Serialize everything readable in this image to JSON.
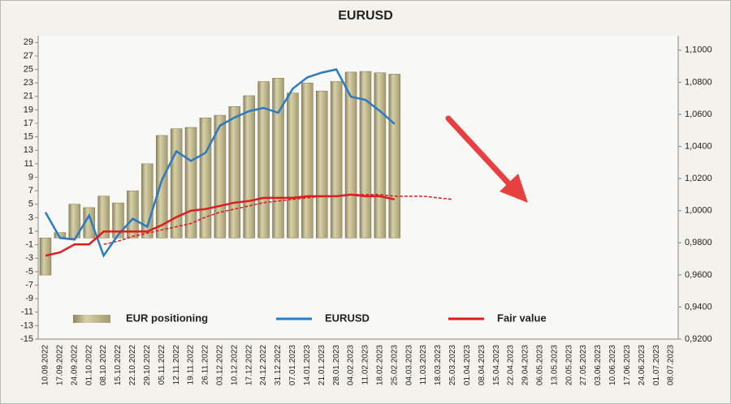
{
  "chart_data": {
    "type": "combo",
    "title": "EURUSD",
    "categories": [
      "10.09.2022",
      "17.09.2022",
      "24.09.2022",
      "01.10.2022",
      "08.10.2022",
      "15.10.2022",
      "22.10.2022",
      "29.10.2022",
      "05.11.2022",
      "12.11.2022",
      "19.11.2022",
      "26.11.2022",
      "03.12.2022",
      "10.12.2022",
      "17.12.2022",
      "24.12.2022",
      "31.12.2022",
      "07.01.2023",
      "14.01.2023",
      "21.01.2023",
      "28.01.2023",
      "04.02.2023",
      "11.02.2023",
      "18.02.2023",
      "25.02.2023",
      "04.03.2023",
      "11.03.2023",
      "18.03.2023",
      "25.03.2023",
      "01.04.2023",
      "08.04.2023",
      "15.04.2023",
      "22.04.2023",
      "29.04.2023",
      "06.05.2023",
      "13.05.2023",
      "20.05.2023",
      "27.05.2023",
      "03.06.2023",
      "10.06.2023",
      "17.06.2023",
      "24.06.2023",
      "01.07.2023",
      "08.07.2023"
    ],
    "series": [
      {
        "name": "EUR positioning",
        "kind": "bar",
        "color": "#c4bb8e",
        "values": [
          -5.5,
          0.8,
          5,
          4.5,
          6.2,
          5.2,
          7,
          11,
          15.2,
          16.2,
          16.4,
          17.8,
          18.2,
          19.5,
          21.1,
          23.2,
          23.7,
          21.5,
          23,
          21.8,
          23.2,
          24.6,
          24.7,
          24.5,
          24.3,
          null,
          null,
          null,
          null,
          null,
          null,
          null,
          null,
          null,
          null,
          null,
          null,
          null,
          null,
          null,
          null,
          null,
          null,
          null
        ]
      },
      {
        "name": "EURUSD",
        "kind": "line",
        "axis": "y2",
        "color": "#2a7bc0",
        "values": [
          0.999,
          0.983,
          0.982,
          0.997,
          0.972,
          0.985,
          0.995,
          0.99,
          1.019,
          1.037,
          1.031,
          1.036,
          1.053,
          1.058,
          1.062,
          1.064,
          1.061,
          1.076,
          1.083,
          1.086,
          1.088,
          1.071,
          1.069,
          1.062,
          1.054,
          null,
          null,
          null,
          null,
          null,
          null,
          null,
          null,
          null,
          null,
          null,
          null,
          null,
          null,
          null,
          null,
          null,
          null,
          null
        ]
      },
      {
        "name": "Fair value",
        "kind": "line",
        "axis": "y2",
        "color": "#e01b1b",
        "values": [
          0.972,
          0.974,
          0.979,
          0.979,
          0.987,
          0.987,
          0.987,
          0.987,
          0.991,
          0.996,
          1.0,
          1.001,
          1.003,
          1.005,
          1.006,
          1.008,
          1.008,
          1.008,
          1.009,
          1.009,
          1.009,
          1.01,
          1.009,
          1.009,
          1.007,
          null,
          null,
          null,
          null,
          null,
          null,
          null,
          null,
          null,
          null,
          null,
          null,
          null,
          null,
          null,
          null,
          null,
          null,
          null
        ]
      },
      {
        "kind": "dashed",
        "axis": "y2",
        "color": "#e01b1b",
        "values": [
          null,
          null,
          null,
          null,
          0.979,
          0.981,
          0.984,
          0.986,
          0.988,
          0.99,
          0.992,
          0.996,
          0.999,
          1.001,
          1.003,
          1.005,
          1.006,
          1.007,
          1.008,
          1.009,
          1.009,
          1.01,
          1.01,
          1.01,
          1.009,
          1.009,
          1.009,
          1.008,
          1.007,
          null,
          null,
          null,
          null,
          null,
          null,
          null,
          null,
          null,
          null,
          null,
          null,
          null,
          null,
          null
        ]
      }
    ],
    "ylim": [
      -15,
      30
    ],
    "yticks": [
      -15,
      -13,
      -11,
      -9,
      -7,
      -5,
      -3,
      -1,
      1,
      3,
      5,
      7,
      9,
      11,
      13,
      15,
      17,
      19,
      21,
      23,
      25,
      27,
      29
    ],
    "y2lim": [
      0.92,
      1.109
    ],
    "y2ticks": [
      {
        "value": 0.92,
        "label": "0,9200"
      },
      {
        "value": 0.94,
        "label": "0,9400"
      },
      {
        "value": 0.96,
        "label": "0,9600"
      },
      {
        "value": 0.98,
        "label": "0,9800"
      },
      {
        "value": 1.0,
        "label": "1,0000"
      },
      {
        "value": 1.02,
        "label": "1,0200"
      },
      {
        "value": 1.04,
        "label": "1,0400"
      },
      {
        "value": 1.06,
        "label": "1,0600"
      },
      {
        "value": 1.08,
        "label": "1,0800"
      },
      {
        "value": 1.1,
        "label": "1,1000"
      }
    ],
    "grid": false,
    "legend": "bottom"
  }
}
